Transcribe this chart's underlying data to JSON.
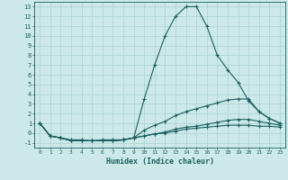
{
  "xlabel": "Humidex (Indice chaleur)",
  "bg_color": "#cce8e8",
  "grid_color": "#afd4d4",
  "line_color": "#1a5f5f",
  "spine_color": "#1a5f5f",
  "xlim": [
    -0.5,
    23.5
  ],
  "ylim": [
    -1.5,
    13.5
  ],
  "xticks": [
    0,
    1,
    2,
    3,
    4,
    5,
    6,
    7,
    8,
    9,
    10,
    11,
    12,
    13,
    14,
    15,
    16,
    17,
    18,
    19,
    20,
    21,
    22,
    23
  ],
  "yticks": [
    -1,
    0,
    1,
    2,
    3,
    4,
    5,
    6,
    7,
    8,
    9,
    10,
    11,
    12,
    13
  ],
  "series": [
    {
      "x": [
        0,
        1,
        2,
        3,
        4,
        5,
        6,
        7,
        8,
        9,
        10,
        11,
        12,
        13,
        14,
        15,
        16,
        17,
        18,
        19,
        20,
        21,
        22,
        23
      ],
      "y": [
        1,
        -0.3,
        -0.5,
        -0.7,
        -0.7,
        -0.8,
        -0.7,
        -0.7,
        -0.7,
        -0.5,
        3.5,
        7.0,
        10.0,
        12.0,
        13.0,
        13.0,
        11.0,
        8.0,
        6.5,
        5.2,
        3.3,
        2.2,
        1.5,
        1.0
      ]
    },
    {
      "x": [
        0,
        1,
        2,
        3,
        4,
        5,
        6,
        7,
        8,
        9,
        10,
        11,
        12,
        13,
        14,
        15,
        16,
        17,
        18,
        19,
        20,
        21,
        22,
        23
      ],
      "y": [
        1,
        -0.3,
        -0.5,
        -0.8,
        -0.8,
        -0.8,
        -0.8,
        -0.8,
        -0.7,
        -0.5,
        0.3,
        0.8,
        1.2,
        1.8,
        2.2,
        2.5,
        2.8,
        3.1,
        3.4,
        3.5,
        3.5,
        2.2,
        1.5,
        1.0
      ]
    },
    {
      "x": [
        0,
        1,
        2,
        3,
        4,
        5,
        6,
        7,
        8,
        9,
        10,
        11,
        12,
        13,
        14,
        15,
        16,
        17,
        18,
        19,
        20,
        21,
        22,
        23
      ],
      "y": [
        1,
        -0.3,
        -0.5,
        -0.8,
        -0.8,
        -0.8,
        -0.8,
        -0.8,
        -0.7,
        -0.5,
        -0.3,
        -0.1,
        0.1,
        0.4,
        0.6,
        0.7,
        0.9,
        1.1,
        1.3,
        1.4,
        1.4,
        1.2,
        1.0,
        0.8
      ]
    },
    {
      "x": [
        0,
        1,
        2,
        3,
        4,
        5,
        6,
        7,
        8,
        9,
        10,
        11,
        12,
        13,
        14,
        15,
        16,
        17,
        18,
        19,
        20,
        21,
        22,
        23
      ],
      "y": [
        1,
        -0.3,
        -0.5,
        -0.8,
        -0.8,
        -0.8,
        -0.8,
        -0.8,
        -0.7,
        -0.5,
        -0.3,
        -0.1,
        0.0,
        0.2,
        0.4,
        0.5,
        0.6,
        0.7,
        0.8,
        0.8,
        0.8,
        0.7,
        0.7,
        0.6
      ]
    }
  ]
}
